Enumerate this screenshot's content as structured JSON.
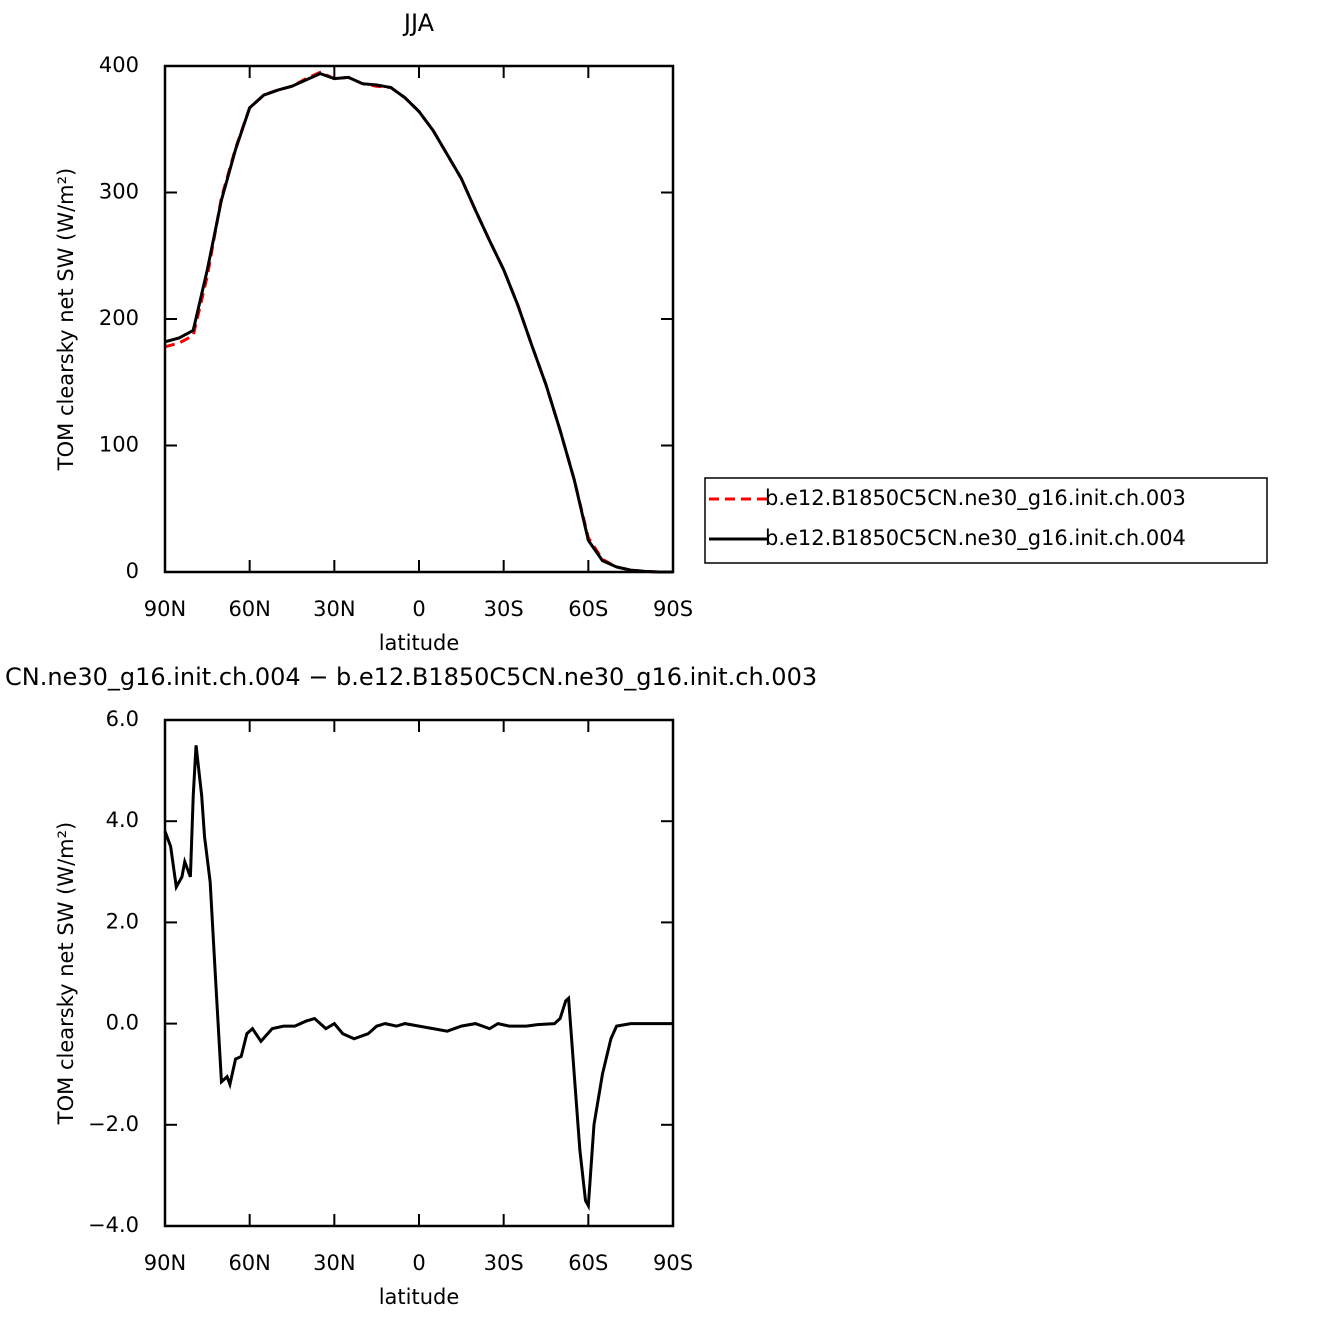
{
  "chart_data": [
    {
      "type": "line",
      "title": "JJA",
      "xlabel": "latitude",
      "ylabel": "TOM clearsky net SW (W/m²)",
      "x": [
        90,
        85,
        80,
        75,
        70,
        65,
        60,
        55,
        50,
        45,
        40,
        35,
        30,
        25,
        20,
        15,
        10,
        5,
        0,
        -5,
        -10,
        -15,
        -20,
        -25,
        -30,
        -35,
        -40,
        -45,
        -50,
        -55,
        -60,
        -65,
        -70,
        -75,
        -80,
        -85,
        -90
      ],
      "series": [
        {
          "name": "b.e12.B1850C5CN.ne30_g16.init.ch.003",
          "color": "#ff0000",
          "dash": true,
          "values": [
            178,
            181,
            187,
            234,
            296,
            335,
            367,
            377,
            381,
            384,
            390,
            395,
            390,
            391,
            386,
            384,
            383,
            375,
            364,
            349,
            330,
            311,
            286,
            262,
            239,
            211,
            179,
            148,
            112,
            73,
            27,
            10,
            4,
            1.5,
            0.5,
            0,
            0
          ]
        },
        {
          "name": "b.e12.B1850C5CN.ne30_g16.init.ch.004",
          "color": "#000000",
          "dash": false,
          "values": [
            182,
            185,
            191,
            239,
            294,
            334,
            367,
            377,
            381,
            384,
            389,
            394,
            390,
            391,
            386,
            385,
            383,
            375,
            364,
            349,
            330,
            311,
            286,
            262,
            239,
            211,
            179,
            148,
            112,
            73,
            25,
            9,
            4,
            1.5,
            0.5,
            0,
            0
          ]
        }
      ],
      "xlim": [
        90,
        -90
      ],
      "xticks": [
        {
          "value": 90,
          "label": "90N"
        },
        {
          "value": 60,
          "label": "60N"
        },
        {
          "value": 30,
          "label": "30N"
        },
        0,
        {
          "value": -30,
          "label": "30S"
        },
        {
          "value": -60,
          "label": "60S"
        },
        {
          "value": -90,
          "label": "90S"
        }
      ],
      "ylim": [
        0,
        400
      ],
      "yticks": [
        0,
        100,
        200,
        300,
        400
      ],
      "legend": "right"
    },
    {
      "type": "line",
      "title": "CN.ne30_g16.init.ch.004 − b.e12.B1850C5CN.ne30_g16.init.ch.003",
      "xlabel": "latitude",
      "ylabel": "TOM clearsky net SW (W/m²)",
      "x": [
        90,
        88,
        86,
        84,
        83,
        81,
        80,
        79,
        77,
        76,
        74,
        72,
        70,
        68,
        67,
        65,
        63,
        61,
        59,
        56,
        52,
        48,
        44,
        40,
        37,
        33,
        30,
        27,
        23,
        18,
        15,
        12,
        8,
        5,
        0,
        -5,
        -10,
        -15,
        -20,
        -25,
        -28,
        -32,
        -38,
        -42,
        -48,
        -50,
        -52,
        -53,
        -55,
        -57,
        -59,
        -60,
        -62,
        -65,
        -68,
        -70,
        -75,
        -80,
        -90
      ],
      "series": [
        {
          "color": "#000000",
          "dash": false,
          "values": [
            3.8,
            3.5,
            2.7,
            2.9,
            3.2,
            2.9,
            4.5,
            5.5,
            4.5,
            3.7,
            2.8,
            0.8,
            -1.15,
            -1.05,
            -1.2,
            -0.7,
            -0.65,
            -0.2,
            -0.1,
            -0.35,
            -0.1,
            -0.05,
            -0.05,
            0.05,
            0.1,
            -0.1,
            0,
            -0.2,
            -0.3,
            -0.2,
            -0.05,
            0,
            -0.05,
            0,
            -0.05,
            -0.1,
            -0.15,
            -0.05,
            0,
            -0.1,
            0,
            -0.05,
            -0.05,
            -0.02,
            0,
            0.1,
            0.45,
            0.5,
            -1.0,
            -2.5,
            -3.5,
            -3.6,
            -2.0,
            -1.0,
            -0.3,
            -0.05,
            0,
            0,
            0
          ]
        }
      ],
      "xlim": [
        90,
        -90
      ],
      "xticks": [
        {
          "value": 90,
          "label": "90N"
        },
        {
          "value": 60,
          "label": "60N"
        },
        {
          "value": 30,
          "label": "30N"
        },
        0,
        {
          "value": -30,
          "label": "30S"
        },
        {
          "value": -60,
          "label": "60S"
        },
        {
          "value": -90,
          "label": "90S"
        }
      ],
      "ylim": [
        -4,
        6
      ],
      "yticks": [
        {
          "value": -4,
          "label": "−4.0"
        },
        {
          "value": -2,
          "label": "−2.0"
        },
        {
          "value": 0,
          "label": "0.0"
        },
        {
          "value": 2,
          "label": "2.0"
        },
        {
          "value": 4,
          "label": "4.0"
        },
        {
          "value": 6,
          "label": "6.0"
        }
      ]
    }
  ]
}
